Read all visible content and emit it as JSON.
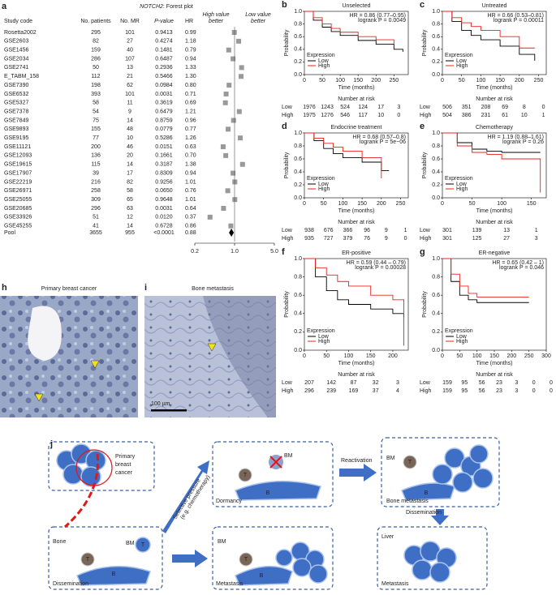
{
  "forest_plot": {
    "label": "a",
    "title_gene": "NOTCH2",
    "title_rest": ": Forest plot",
    "columns": [
      "Study code",
      "No. patients",
      "No. MR",
      "P-value",
      "HR"
    ],
    "high_better": [
      "High value",
      "better"
    ],
    "low_better": [
      "Low value",
      "better"
    ],
    "rows": [
      [
        "Rosetta2002",
        "295",
        "101",
        "0.9413",
        "0.99"
      ],
      [
        "GSE2603",
        "82",
        "27",
        "0.4274",
        "1.18"
      ],
      [
        "GSE1456",
        "159",
        "40",
        "0.1481",
        "0.79"
      ],
      [
        "GSE2034",
        "286",
        "107",
        "0.6487",
        "0.94"
      ],
      [
        "GSE2741",
        "50",
        "13",
        "0.2936",
        "1.33"
      ],
      [
        "E_TABM_158",
        "112",
        "21",
        "0.5466",
        "1.30"
      ],
      [
        "GSE7390",
        "198",
        "62",
        "0.0984",
        "0.80"
      ],
      [
        "GSE6532",
        "393",
        "101",
        "0.0031",
        "0.71"
      ],
      [
        "GSE5327",
        "58",
        "11",
        "0.3619",
        "0.69"
      ],
      [
        "GSE7378",
        "54",
        "9",
        "0.6479",
        "1.21"
      ],
      [
        "GSE7849",
        "75",
        "14",
        "0.8759",
        "0.96"
      ],
      [
        "GSE9893",
        "155",
        "48",
        "0.0779",
        "0.77"
      ],
      [
        "GSE9195",
        "77",
        "10",
        "0.5286",
        "1.26"
      ],
      [
        "GSE11121",
        "200",
        "46",
        "0.0151",
        "0.63"
      ],
      [
        "GSE12093",
        "136",
        "20",
        "0.1661",
        "0.70"
      ],
      [
        "GSE19615",
        "115",
        "14",
        "0.3187",
        "1.38"
      ],
      [
        "GSE17907",
        "39",
        "17",
        "0.8309",
        "0.94"
      ],
      [
        "GSE22219",
        "216",
        "82",
        "0.9256",
        "1.01"
      ],
      [
        "GSE26971",
        "258",
        "58",
        "0.0650",
        "0.76"
      ],
      [
        "GSE25055",
        "309",
        "65",
        "0.9648",
        "1.01"
      ],
      [
        "GSE20685",
        "296",
        "63",
        "0.0031",
        "0.64"
      ],
      [
        "GSE33926",
        "51",
        "12",
        "0.0120",
        "0.37"
      ],
      [
        "GSE45255",
        "41",
        "14",
        "0.6728",
        "0.86"
      ]
    ],
    "pool": [
      "Pool",
      "3655",
      "955",
      "<0.0001",
      "0.88"
    ],
    "log_scale": true,
    "xlim": [
      0.2,
      5
    ],
    "xticks": [
      0.2,
      {
        "value": 1,
        "label": "1.0"
      },
      {
        "value": 5,
        "label": "5.0"
      }
    ]
  },
  "km_common": {
    "y_label": "Probability",
    "x_label": "Time (months)",
    "legend_title": "Expression",
    "risk_title": "Number at risk",
    "ylim": [
      0,
      1
    ],
    "yticks": [
      {
        "value": 0,
        "label": "0.0"
      },
      0.2,
      0.4,
      0.6,
      0.8,
      {
        "value": 1,
        "label": "1.0"
      }
    ]
  },
  "km_panels": [
    {
      "label": "b",
      "title": "Unselected",
      "hr": "HR = 0.86 (0.77–0.95)",
      "logrank": "logrank P = 0.0049",
      "xlim": [
        0,
        290
      ],
      "xticks": [
        0,
        50,
        100,
        150,
        200,
        250
      ],
      "x": [
        0,
        25,
        50,
        75,
        100,
        150,
        200,
        250,
        275
      ],
      "series": [
        {
          "name": "Low",
          "color": "#000000",
          "values": [
            1,
            0.86,
            0.75,
            0.68,
            0.62,
            0.54,
            0.48,
            0.4,
            0.36
          ],
          "at_risk": [
            1976,
            1243,
            524,
            124,
            17,
            3
          ]
        },
        {
          "name": "High",
          "color": "#e8201c",
          "values": [
            1,
            0.9,
            0.8,
            0.73,
            0.67,
            0.6,
            0.55,
            0.48,
            null
          ],
          "at_risk": [
            1975,
            1276,
            546,
            117,
            10,
            0
          ]
        }
      ]
    },
    {
      "label": "c",
      "title": "Untreated",
      "hr": "HR = 0.66 (0.53–0.81)",
      "logrank": "logrank P = 0.00011",
      "xlim": [
        0,
        270
      ],
      "xticks": [
        0,
        50,
        100,
        150,
        200,
        250
      ],
      "x": [
        0,
        25,
        50,
        75,
        100,
        150,
        200,
        240
      ],
      "series": [
        {
          "name": "Low",
          "color": "#000000",
          "values": [
            1,
            0.84,
            0.7,
            0.62,
            0.55,
            0.45,
            0.32,
            0.22
          ],
          "at_risk": [
            506,
            351,
            208,
            69,
            8,
            0
          ]
        },
        {
          "name": "High",
          "color": "#e8201c",
          "values": [
            1,
            0.9,
            0.82,
            0.76,
            0.7,
            0.6,
            0.42,
            0.42
          ],
          "at_risk": [
            504,
            386,
            231,
            61,
            10,
            1
          ]
        }
      ]
    },
    {
      "label": "d",
      "title": "Endocrine treatment",
      "hr": "HR = 0.68 (0.57–0.8)",
      "logrank": "logrank P = 5e−06",
      "xlim": [
        0,
        270
      ],
      "xticks": [
        0,
        50,
        100,
        150,
        200,
        250
      ],
      "x": [
        0,
        25,
        50,
        75,
        100,
        150,
        200,
        220
      ],
      "series": [
        {
          "name": "Low",
          "color": "#000000",
          "values": [
            1,
            0.88,
            0.76,
            0.68,
            0.62,
            0.55,
            0.42,
            0.42
          ],
          "at_risk": [
            938,
            676,
            366,
            96,
            9,
            1
          ]
        },
        {
          "name": "High",
          "color": "#e8201c",
          "values": [
            1,
            0.92,
            0.84,
            0.78,
            0.72,
            0.62,
            0.3,
            null
          ],
          "at_risk": [
            935,
            727,
            379,
            76,
            9,
            0
          ]
        }
      ]
    },
    {
      "label": "e",
      "title": "Chemotherapy",
      "hr": "HR = 1.19 (0.88–1.61)",
      "logrank": "logrank P = 0.26",
      "xlim": [
        0,
        175
      ],
      "xticks": [
        0,
        50,
        100,
        150
      ],
      "x": [
        0,
        25,
        50,
        75,
        100,
        125,
        150,
        165
      ],
      "series": [
        {
          "name": "Low",
          "color": "#000000",
          "values": [
            1,
            0.85,
            0.75,
            0.72,
            0.7,
            0.7,
            0.7,
            0.7
          ],
          "at_risk": [
            301,
            139,
            13,
            1
          ]
        },
        {
          "name": "High",
          "color": "#e8201c",
          "values": [
            1,
            0.8,
            0.7,
            0.67,
            0.6,
            0.6,
            0.6,
            0.08
          ],
          "at_risk": [
            301,
            125,
            27,
            3
          ]
        }
      ]
    },
    {
      "label": "f",
      "title": "ER-positive",
      "hr": "HR = 0.59 (0.44 – 0.79)",
      "logrank": "logrank P = 0.00028",
      "xlim": [
        0,
        235
      ],
      "xticks": [
        0,
        50,
        100,
        150,
        200
      ],
      "x": [
        0,
        25,
        50,
        75,
        100,
        150,
        200,
        225
      ],
      "series": [
        {
          "name": "Low",
          "color": "#000000",
          "values": [
            1,
            0.8,
            0.65,
            0.55,
            0.5,
            0.45,
            0.4,
            0.35
          ],
          "at_risk": [
            207,
            142,
            87,
            32,
            3
          ]
        },
        {
          "name": "High",
          "color": "#e8201c",
          "values": [
            1,
            0.9,
            0.82,
            0.75,
            0.7,
            0.6,
            0.55,
            0.05
          ],
          "at_risk": [
            296,
            239,
            169,
            37,
            4
          ]
        }
      ]
    },
    {
      "label": "g",
      "title": "ER-negative",
      "hr": "HR = 0.65 (0.42 – 1)",
      "logrank": "logrank P = 0.046",
      "xlim": [
        0,
        300
      ],
      "xticks": [
        0,
        50,
        100,
        150,
        200,
        250,
        300
      ],
      "x": [
        0,
        25,
        50,
        75,
        100,
        150,
        200,
        250
      ],
      "series": [
        {
          "name": "Low",
          "color": "#000000",
          "values": [
            1,
            0.75,
            0.6,
            0.55,
            0.52,
            0.52,
            0.52,
            0.52
          ],
          "at_risk": [
            159,
            95,
            56,
            23,
            3,
            0,
            0
          ]
        },
        {
          "name": "High",
          "color": "#e8201c",
          "values": [
            1,
            0.83,
            0.7,
            0.62,
            0.58,
            0.58,
            0.58,
            0.58
          ],
          "at_risk": [
            159,
            95,
            56,
            23,
            3,
            0,
            0
          ]
        }
      ]
    }
  ],
  "micrographs": [
    {
      "label": "h",
      "title": "Primary breast cancer"
    },
    {
      "label": "i",
      "title": "Bone metastasis",
      "scale_bar": "100 µm"
    }
  ],
  "schematic": {
    "label": "j",
    "primary": [
      "Primary",
      "breast",
      "cancer"
    ],
    "bone": "Bone",
    "bm": "BM",
    "t": "T",
    "b": "B",
    "dissemination": "Dissemination",
    "selective": [
      "Selective pressure",
      "(e.g. chemotherapy)"
    ],
    "dormancy": "Dormancy",
    "reactivation": "Reactivation",
    "bone_metastasis": "Bone metastasis",
    "metastasis": "Metastasis",
    "liver": "Liver"
  }
}
